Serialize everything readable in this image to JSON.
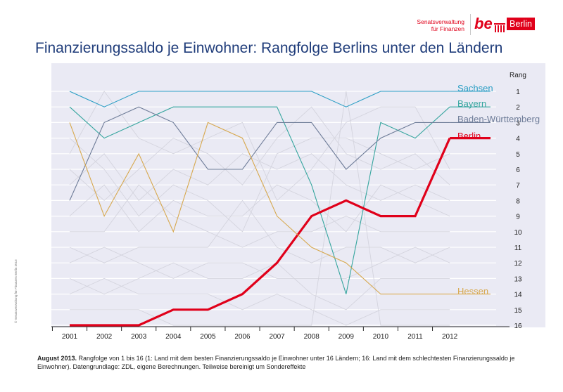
{
  "header": {
    "logo_line1": "Senatsverwaltung",
    "logo_line2": "für Finanzen",
    "logo_be": "be",
    "logo_berlin": "Berlin",
    "title": "Finanzierungssaldo je Einwohner: Rangfolge Berlins unter den Ländern"
  },
  "side_note": "© Senatsverwaltung für Finanzen Berlin 2013",
  "footer": {
    "bold": "August 2013.",
    "text": " Rangfolge von 1 bis 16 (1: Land mit dem besten Finanzierungssaldo je Einwohner unter 16 Ländern; 16: Land mit dem schlechtesten Finanzierungssaldo je Einwohner). Datengrundlage: ZDL, eigene Berechnungen. Teilweise bereinigt um Sondereffekte"
  },
  "colors": {
    "brand_red": "#e0001a",
    "title_blue": "#1f3c7a",
    "plot_background": "#eaeaf4",
    "background_lines": "#d4d4de"
  },
  "chart_data": {
    "type": "line",
    "title": "Finanzierungssaldo je Einwohner: Rangfolge Berlins unter den Ländern",
    "xlabel": "",
    "ylabel": "Rang",
    "x": [
      "2001",
      "2002",
      "2003",
      "2004",
      "2005",
      "2006",
      "2007",
      "2008",
      "2009",
      "2010",
      "2011",
      "2012"
    ],
    "yticks": [
      1,
      2,
      3,
      4,
      5,
      6,
      7,
      8,
      9,
      10,
      11,
      12,
      13,
      14,
      15,
      16
    ],
    "ylim": [
      1,
      16
    ],
    "y_inverted": true,
    "grid": true,
    "legend": "line labels at right end",
    "series": [
      {
        "name": "Sachsen",
        "color": "#2a9ec4",
        "width": 1.1,
        "values": [
          1,
          2,
          1,
          1,
          1,
          1,
          1,
          1,
          2,
          1,
          1,
          1
        ]
      },
      {
        "name": "Bayern",
        "color": "#35a59e",
        "width": 1.1,
        "values": [
          2,
          4,
          3,
          2,
          2,
          2,
          2,
          7,
          14,
          3,
          4,
          2
        ]
      },
      {
        "name": "Baden-Württemberg",
        "color": "#6e7c98",
        "width": 1.1,
        "values": [
          8,
          3,
          2,
          3,
          6,
          6,
          3,
          3,
          6,
          4,
          3,
          3
        ]
      },
      {
        "name": "Berlin",
        "color": "#e0001a",
        "width": 3.2,
        "values": [
          16,
          16,
          16,
          15,
          15,
          14,
          12,
          9,
          8,
          9,
          9,
          4
        ]
      },
      {
        "name": "Hessen",
        "color": "#d7a84e",
        "width": 1.1,
        "values": [
          3,
          9,
          5,
          10,
          3,
          4,
          9,
          11,
          12,
          14,
          14,
          14
        ]
      }
    ],
    "other_series": [
      [
        4,
        6,
        9,
        7,
        8,
        10,
        5,
        4,
        4,
        5,
        6,
        5
      ],
      [
        5,
        1,
        4,
        5,
        4,
        3,
        8,
        6,
        3,
        2,
        2,
        6
      ],
      [
        6,
        8,
        6,
        4,
        5,
        7,
        4,
        2,
        5,
        6,
        5,
        7
      ],
      [
        7,
        5,
        8,
        6,
        7,
        5,
        6,
        5,
        7,
        8,
        7,
        8
      ],
      [
        9,
        7,
        10,
        8,
        9,
        9,
        7,
        8,
        10,
        7,
        8,
        9
      ],
      [
        10,
        10,
        7,
        9,
        10,
        11,
        10,
        10,
        9,
        10,
        10,
        10
      ],
      [
        11,
        12,
        11,
        11,
        11,
        8,
        11,
        12,
        11,
        11,
        12,
        11
      ],
      [
        12,
        11,
        12,
        13,
        12,
        12,
        13,
        13,
        13,
        12,
        11,
        12
      ],
      [
        13,
        14,
        13,
        12,
        13,
        13,
        12,
        14,
        15,
        13,
        13,
        13
      ],
      [
        14,
        13,
        14,
        14,
        14,
        15,
        14,
        15,
        16,
        15,
        15,
        15
      ],
      [
        15,
        15,
        15,
        16,
        16,
        16,
        16,
        16,
        1,
        16,
        16,
        16
      ]
    ]
  }
}
